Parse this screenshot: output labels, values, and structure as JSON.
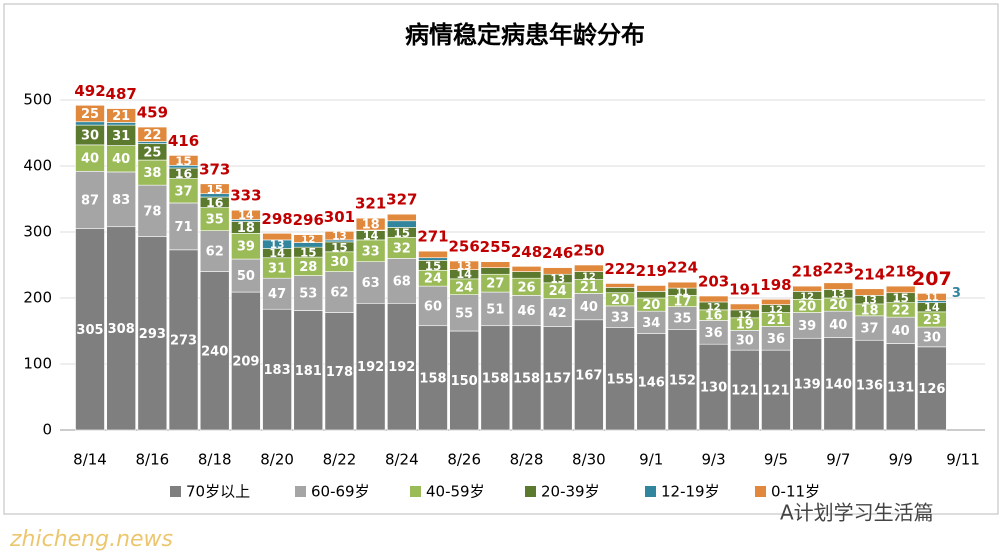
{
  "chart_data": {
    "type": "stacked_bar",
    "title": "病情稳定病患年龄分布",
    "categories": [
      "8/14",
      null,
      "8/16",
      null,
      "8/18",
      null,
      "8/20",
      null,
      "8/22",
      null,
      "8/24",
      null,
      "8/26",
      null,
      "8/28",
      null,
      "8/30",
      null,
      "9/1",
      null,
      "9/3",
      null,
      "9/5",
      null,
      "9/7",
      null,
      "9/9",
      null,
      "9/11"
    ],
    "series": [
      {
        "name": "70岁以上",
        "color": "#7f7f7f",
        "values": [
          305,
          308,
          293,
          273,
          240,
          209,
          183,
          181,
          178,
          192,
          192,
          158,
          150,
          158,
          158,
          157,
          167,
          155,
          146,
          152,
          130,
          121,
          121,
          139,
          140,
          136,
          131,
          126,
          null
        ]
      },
      {
        "name": "60-69岁",
        "color": "#a5a5a5",
        "values": [
          87,
          83,
          78,
          71,
          62,
          50,
          47,
          53,
          62,
          63,
          68,
          60,
          55,
          51,
          46,
          42,
          40,
          33,
          34,
          35,
          36,
          30,
          36,
          39,
          40,
          37,
          40,
          30,
          null
        ]
      },
      {
        "name": "40-59岁",
        "color": "#9bbb59",
        "values": [
          40,
          40,
          38,
          37,
          35,
          39,
          31,
          28,
          30,
          33,
          32,
          24,
          24,
          27,
          26,
          24,
          21,
          20,
          20,
          17,
          16,
          19,
          21,
          20,
          20,
          18,
          22,
          23,
          null
        ]
      },
      {
        "name": "20-39岁",
        "color": "#5c7a2e",
        "values": [
          30,
          31,
          25,
          16,
          16,
          18,
          14,
          15,
          15,
          14,
          15,
          15,
          14,
          10,
          10,
          13,
          12,
          8,
          10,
          11,
          12,
          12,
          12,
          12,
          13,
          13,
          15,
          14,
          null
        ]
      },
      {
        "name": "12-19岁",
        "color": "#31859c",
        "values": [
          5,
          4,
          3,
          4,
          5,
          3,
          13,
          7,
          3,
          1,
          10,
          4,
          0,
          0,
          0,
          0,
          0,
          0,
          0,
          0,
          0,
          0,
          0,
          0,
          0,
          0,
          0,
          3,
          null
        ]
      },
      {
        "name": "0-11岁",
        "color": "#e0883c",
        "values": [
          25,
          21,
          22,
          15,
          15,
          14,
          10,
          12,
          13,
          18,
          10,
          10,
          13,
          9,
          8,
          10,
          10,
          6,
          9,
          9,
          9,
          9,
          8,
          8,
          10,
          10,
          10,
          11,
          null
        ]
      }
    ],
    "totals": [
      492,
      487,
      459,
      416,
      373,
      333,
      298,
      296,
      301,
      321,
      327,
      271,
      256,
      255,
      248,
      246,
      250,
      222,
      219,
      224,
      203,
      191,
      198,
      218,
      223,
      214,
      218,
      207,
      null
    ],
    "totals_color": "#c00000",
    "ylim": [
      0,
      500
    ],
    "yticks": [
      0,
      100,
      200,
      300,
      400,
      500
    ],
    "grid": true,
    "watermarks": [
      "zhicheng.news",
      "A计划学习生活篇"
    ]
  }
}
